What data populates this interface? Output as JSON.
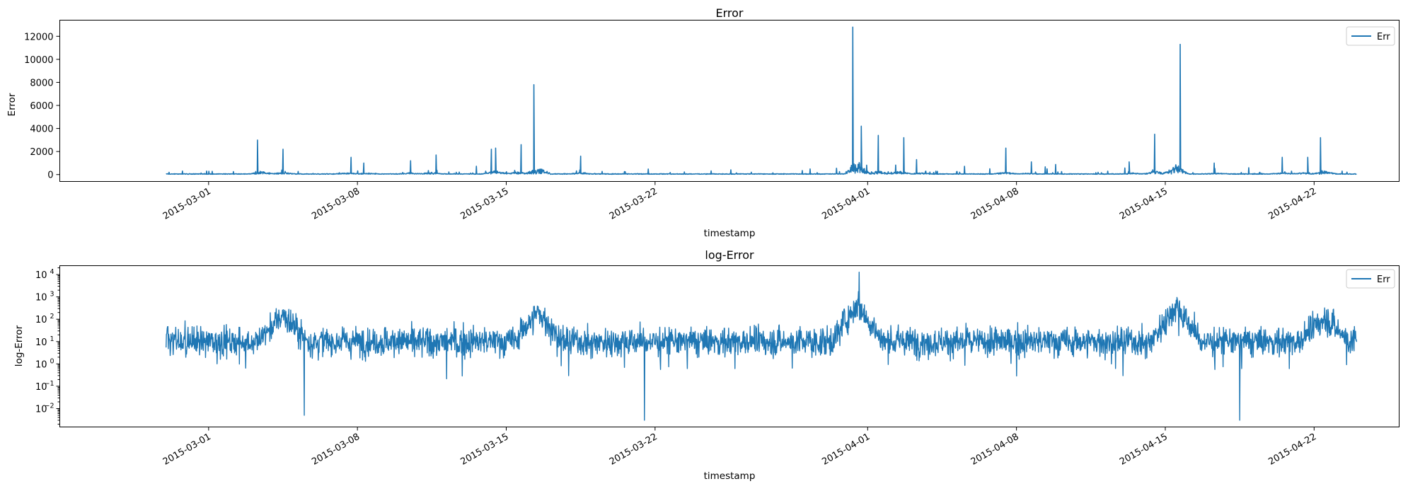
{
  "chart_data": [
    {
      "type": "line",
      "title": "Error",
      "xlabel": "timestamp",
      "ylabel": "Error",
      "yscale": "linear",
      "ylim": [
        -600,
        13400
      ],
      "x_range": [
        "2015-02-22",
        "2015-04-26"
      ],
      "data_range": [
        "2015-02-27",
        "2015-04-24"
      ],
      "xticks": [
        "2015-03-01",
        "2015-03-08",
        "2015-03-15",
        "2015-03-22",
        "2015-04-01",
        "2015-04-08",
        "2015-04-15",
        "2015-04-22"
      ],
      "yticks": [
        0,
        2000,
        4000,
        6000,
        8000,
        10000,
        12000
      ],
      "ytick_labels": [
        "0",
        "2000",
        "4000",
        "6000",
        "8000",
        "10000",
        "12000"
      ],
      "legend": [
        "Err"
      ],
      "color": "#1f77b4",
      "series": [
        {
          "name": "Err",
          "baseline": 60,
          "spikes": [
            {
              "date": "2015-03-03",
              "value": 3000
            },
            {
              "date": "2015-03-04",
              "value": 2200
            },
            {
              "date": "2015-03-07",
              "value": 1500
            },
            {
              "date": "2015-03-08",
              "value": 1000
            },
            {
              "date": "2015-03-10",
              "value": 1200
            },
            {
              "date": "2015-03-11",
              "value": 1700
            },
            {
              "date": "2015-03-14",
              "value": 2200
            },
            {
              "date": "2015-03-14",
              "value": 2300
            },
            {
              "date": "2015-03-15",
              "value": 2600
            },
            {
              "date": "2015-03-16",
              "value": 7800
            },
            {
              "date": "2015-03-18",
              "value": 1600
            },
            {
              "date": "2015-03-31",
              "value": 4200
            },
            {
              "date": "2015-03-31",
              "value": 12800
            },
            {
              "date": "2015-04-01",
              "value": 3400
            },
            {
              "date": "2015-04-02",
              "value": 3200
            },
            {
              "date": "2015-04-03",
              "value": 1300
            },
            {
              "date": "2015-04-07",
              "value": 2300
            },
            {
              "date": "2015-04-08",
              "value": 1100
            },
            {
              "date": "2015-04-13",
              "value": 1100
            },
            {
              "date": "2015-04-14",
              "value": 3500
            },
            {
              "date": "2015-04-15",
              "value": 11300
            },
            {
              "date": "2015-04-17",
              "value": 1000
            },
            {
              "date": "2015-04-20",
              "value": 1500
            },
            {
              "date": "2015-04-21",
              "value": 1500
            },
            {
              "date": "2015-04-22",
              "value": 3200
            }
          ]
        }
      ]
    },
    {
      "type": "line",
      "title": "log-Error",
      "xlabel": "timestamp",
      "ylabel": "log-Error",
      "yscale": "log",
      "ylim": [
        0.0015,
        25000
      ],
      "x_range": [
        "2015-02-22",
        "2015-04-26"
      ],
      "data_range": [
        "2015-02-27",
        "2015-04-24"
      ],
      "xticks": [
        "2015-03-01",
        "2015-03-08",
        "2015-03-15",
        "2015-03-22",
        "2015-04-01",
        "2015-04-08",
        "2015-04-15",
        "2015-04-22"
      ],
      "yticks": [
        0.01,
        0.1,
        1,
        10,
        100,
        1000,
        10000
      ],
      "ytick_labels": [
        "10",
        "10",
        "10",
        "10",
        "10",
        "10",
        "10"
      ],
      "ytick_exponents": [
        "−2",
        "−1",
        "0",
        "1",
        "2",
        "3",
        "4"
      ],
      "legend": [
        "Err"
      ],
      "color": "#1f77b4",
      "series": [
        {
          "name": "Err",
          "typical_center": 10,
          "elevated_periods": [
            {
              "date": "2015-03-04",
              "level": 150
            },
            {
              "date": "2015-03-16",
              "level": 200
            },
            {
              "date": "2015-03-31",
              "level": 500
            },
            {
              "date": "2015-04-15",
              "level": 400
            },
            {
              "date": "2015-04-22",
              "level": 120
            }
          ],
          "minimum_dips": [
            {
              "date": "2015-03-05",
              "value": 0.005
            },
            {
              "date": "2015-03-21",
              "value": 0.003
            },
            {
              "date": "2015-04-18",
              "value": 0.003
            }
          ],
          "maximum": {
            "date": "2015-03-31",
            "value": 12800
          }
        }
      ]
    }
  ]
}
